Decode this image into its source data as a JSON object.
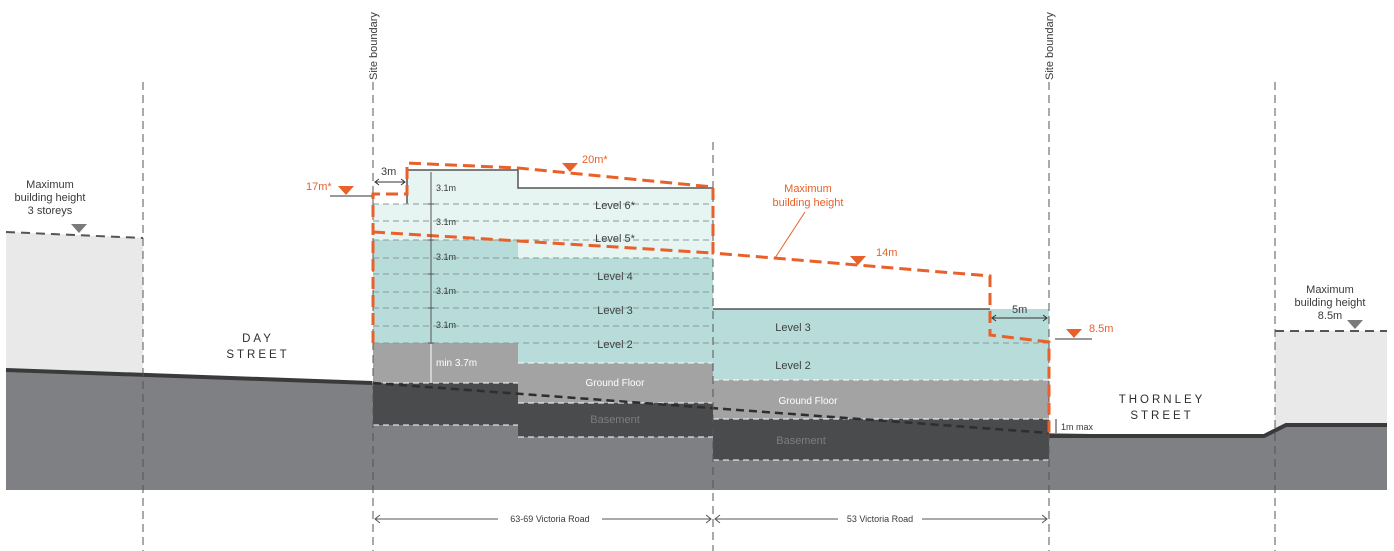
{
  "colors": {
    "orange": "#e8602a",
    "ground_dark": "#4b4b4d",
    "ground_mid": "#7f8083",
    "building_teal": "#b7dcd9",
    "building_teal_light": "#e6f4f2",
    "ground_floor": "#a3a3a3",
    "basement": "#4a4b4d",
    "neighbour": "#e9e9e9"
  },
  "site_boundary_left": "Site boundary",
  "site_boundary_right": "Site boundary",
  "day_street": {
    "line1": "DAY",
    "line2": "STREET"
  },
  "thornley_street": {
    "line1": "THORNLEY",
    "line2": "STREET"
  },
  "left_neighbour_label": {
    "line1": "Maximum",
    "line2": "building height",
    "line3": "3 storeys"
  },
  "right_neighbour_label": {
    "line1": "Maximum",
    "line2": "building height",
    "line3": "8.5m"
  },
  "max_height_label": {
    "line1": "Maximum",
    "line2": "building height"
  },
  "heights": {
    "h17": "17m*",
    "h20": "20m*",
    "h14": "14m",
    "h85": "8.5m"
  },
  "setbacks": {
    "left": "3m",
    "right": "5m"
  },
  "floor_dims": [
    "3.1m",
    "3.1m",
    "3.1m",
    "3.1m",
    "3.1m"
  ],
  "ground_dim": "min 3.7m",
  "basement_dim": "1m max",
  "building_a_levels": [
    "Level 6*",
    "Level 5*",
    "Level 4",
    "Level 3",
    "Level 2",
    "Ground Floor",
    "Basement"
  ],
  "building_b_levels": [
    "Level 3",
    "Level 2",
    "Ground Floor",
    "Basement"
  ],
  "lots": {
    "left": "63-69 Victoria Road",
    "right": "53 Victoria Road"
  }
}
